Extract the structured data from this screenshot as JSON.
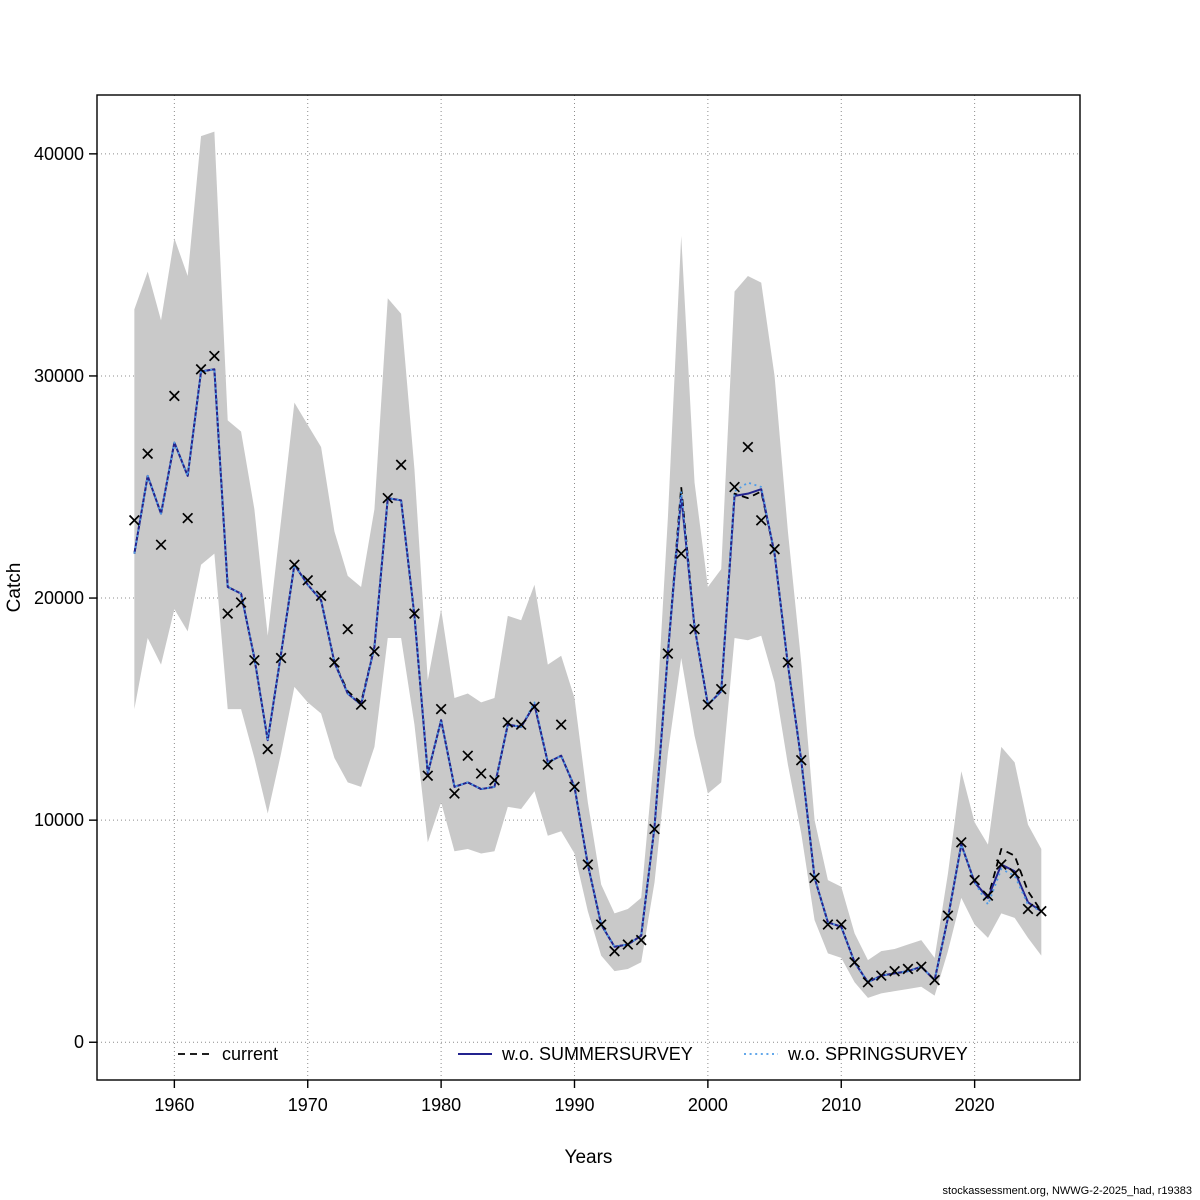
{
  "figure": {
    "footer": "stockassessment.org, NWWG-2-2025_had, r19383"
  },
  "chart_data": {
    "type": "line",
    "title": "",
    "xlabel": "Years",
    "ylabel": "Catch",
    "xlim": [
      1954.2,
      2027.9
    ],
    "ylim": [
      -1700,
      42650
    ],
    "xticks": [
      1960,
      1970,
      1980,
      1990,
      2000,
      2010,
      2020
    ],
    "yticks": [
      0,
      10000,
      20000,
      30000,
      40000
    ],
    "grid": true,
    "grid_color": "#8c8c8c",
    "legend_position": "bottom-inside",
    "x": [
      1957,
      1958,
      1959,
      1960,
      1961,
      1962,
      1963,
      1964,
      1965,
      1966,
      1967,
      1968,
      1969,
      1970,
      1971,
      1972,
      1973,
      1974,
      1975,
      1976,
      1977,
      1978,
      1979,
      1980,
      1981,
      1982,
      1983,
      1984,
      1985,
      1986,
      1987,
      1988,
      1989,
      1990,
      1991,
      1992,
      1993,
      1994,
      1995,
      1996,
      1997,
      1998,
      1999,
      2000,
      2001,
      2002,
      2003,
      2004,
      2005,
      2006,
      2007,
      2008,
      2009,
      2010,
      2011,
      2012,
      2013,
      2014,
      2015,
      2016,
      2017,
      2018,
      2019,
      2020,
      2021,
      2022,
      2023,
      2024,
      2025
    ],
    "observed": {
      "name": "observed catches",
      "marker": "x",
      "color": "#000000",
      "values": [
        23500,
        26500,
        22400,
        29100,
        23600,
        30300,
        30900,
        19300,
        19800,
        17200,
        13200,
        17300,
        21500,
        20800,
        20100,
        17100,
        18600,
        15200,
        17600,
        24500,
        26000,
        19300,
        12000,
        15000,
        11200,
        12900,
        12100,
        11800,
        14400,
        14300,
        15100,
        12500,
        14300,
        11500,
        8000,
        5300,
        4100,
        4400,
        4600,
        9600,
        17500,
        22000,
        18600,
        15200,
        15900,
        25000,
        26800,
        23500,
        22200,
        17100,
        12700,
        7400,
        5300,
        5300,
        3600,
        2700,
        3000,
        3200,
        3300,
        3400,
        2800,
        5700,
        9000,
        7300,
        6600,
        8000,
        7600,
        6000,
        5900
      ]
    },
    "band": {
      "name": "confidence band",
      "color": "#c9c9c9",
      "lower": [
        15000,
        18200,
        17000,
        19500,
        18500,
        21500,
        22000,
        15000,
        15000,
        12800,
        10300,
        13000,
        16000,
        15300,
        14800,
        12800,
        11700,
        11500,
        13300,
        18200,
        18200,
        14300,
        9000,
        10800,
        8600,
        8700,
        8500,
        8600,
        10600,
        10500,
        11300,
        9300,
        9500,
        8500,
        5900,
        3900,
        3200,
        3300,
        3600,
        7200,
        13000,
        17300,
        13800,
        11200,
        11700,
        18200,
        18100,
        18300,
        16200,
        12500,
        9400,
        5500,
        4000,
        3800,
        2700,
        2000,
        2200,
        2300,
        2400,
        2500,
        2100,
        4100,
        6500,
        5300,
        4700,
        5800,
        5600,
        4700,
        3900
      ],
      "upper": [
        33000,
        34700,
        32500,
        36200,
        34500,
        40800,
        41000,
        28000,
        27500,
        24000,
        18300,
        23500,
        28800,
        27800,
        26800,
        23000,
        21000,
        20500,
        24000,
        33500,
        32800,
        25800,
        16300,
        19500,
        15500,
        15700,
        15300,
        15500,
        19200,
        19000,
        20600,
        17000,
        17400,
        15500,
        10800,
        7100,
        5800,
        6000,
        6500,
        13100,
        23600,
        36300,
        25200,
        20500,
        21300,
        33800,
        34500,
        34200,
        30000,
        23000,
        17100,
        10000,
        7300,
        7000,
        4900,
        3700,
        4100,
        4200,
        4400,
        4600,
        3800,
        7600,
        12200,
        9900,
        8900,
        13300,
        12600,
        9800,
        8700
      ]
    },
    "series": [
      {
        "id": "current",
        "name": "current",
        "color": "#000000",
        "dash": "dashed",
        "width": 1.8,
        "values": [
          22000,
          25500,
          23800,
          27000,
          25500,
          30200,
          30300,
          20500,
          20200,
          17300,
          13600,
          17500,
          21500,
          20600,
          19900,
          17100,
          15800,
          15300,
          17800,
          24500,
          24400,
          19200,
          12100,
          14500,
          11500,
          11700,
          11400,
          11500,
          14300,
          14200,
          15200,
          12600,
          12900,
          11500,
          8000,
          5300,
          4300,
          4400,
          4800,
          9700,
          17500,
          25000,
          18700,
          15200,
          15800,
          24700,
          24500,
          24800,
          22000,
          17000,
          12700,
          7400,
          5400,
          5200,
          3600,
          2700,
          3000,
          3100,
          3200,
          3400,
          2800,
          5600,
          8900,
          7200,
          6500,
          8700,
          8400,
          6800,
          5900
        ]
      },
      {
        "id": "wo-summersurvey",
        "name": "w.o. SUMMERSURVEY",
        "color": "#23238e",
        "dash": "solid",
        "width": 2,
        "values": [
          22000,
          25500,
          23800,
          27000,
          25500,
          30200,
          30300,
          20500,
          20200,
          17300,
          13600,
          17500,
          21500,
          20600,
          19900,
          17100,
          15700,
          15200,
          17800,
          24500,
          24400,
          19200,
          12100,
          14500,
          11500,
          11700,
          11400,
          11500,
          14300,
          14200,
          15200,
          12600,
          12900,
          11500,
          8000,
          5300,
          4300,
          4400,
          4800,
          9700,
          17500,
          24600,
          18700,
          15200,
          15800,
          24600,
          24700,
          24900,
          22000,
          17000,
          12700,
          7400,
          5400,
          5200,
          3600,
          2700,
          3000,
          3100,
          3200,
          3400,
          2800,
          5600,
          8900,
          7200,
          6500,
          8000,
          7700,
          6300,
          5900
        ]
      },
      {
        "id": "wo-springsurvey",
        "name": "w.o. SPRINGSURVEY",
        "color": "#4f9ce8",
        "dash": "dotted",
        "width": 1.8,
        "values": [
          22000,
          25500,
          23800,
          27000,
          25500,
          30200,
          30300,
          20500,
          20200,
          17300,
          13600,
          17500,
          21500,
          20600,
          19900,
          17100,
          15700,
          15200,
          17800,
          24500,
          24400,
          19200,
          12100,
          14500,
          11500,
          11700,
          11400,
          11500,
          14300,
          14200,
          15300,
          12600,
          12900,
          11500,
          8000,
          5300,
          4300,
          4400,
          4800,
          9700,
          17500,
          24800,
          18700,
          15200,
          15800,
          24800,
          25200,
          25000,
          22000,
          17000,
          12700,
          7400,
          5400,
          5200,
          3600,
          2700,
          3000,
          3100,
          3200,
          3400,
          2800,
          5600,
          8900,
          7200,
          6200,
          7800,
          7500,
          6200,
          5900
        ]
      }
    ]
  }
}
